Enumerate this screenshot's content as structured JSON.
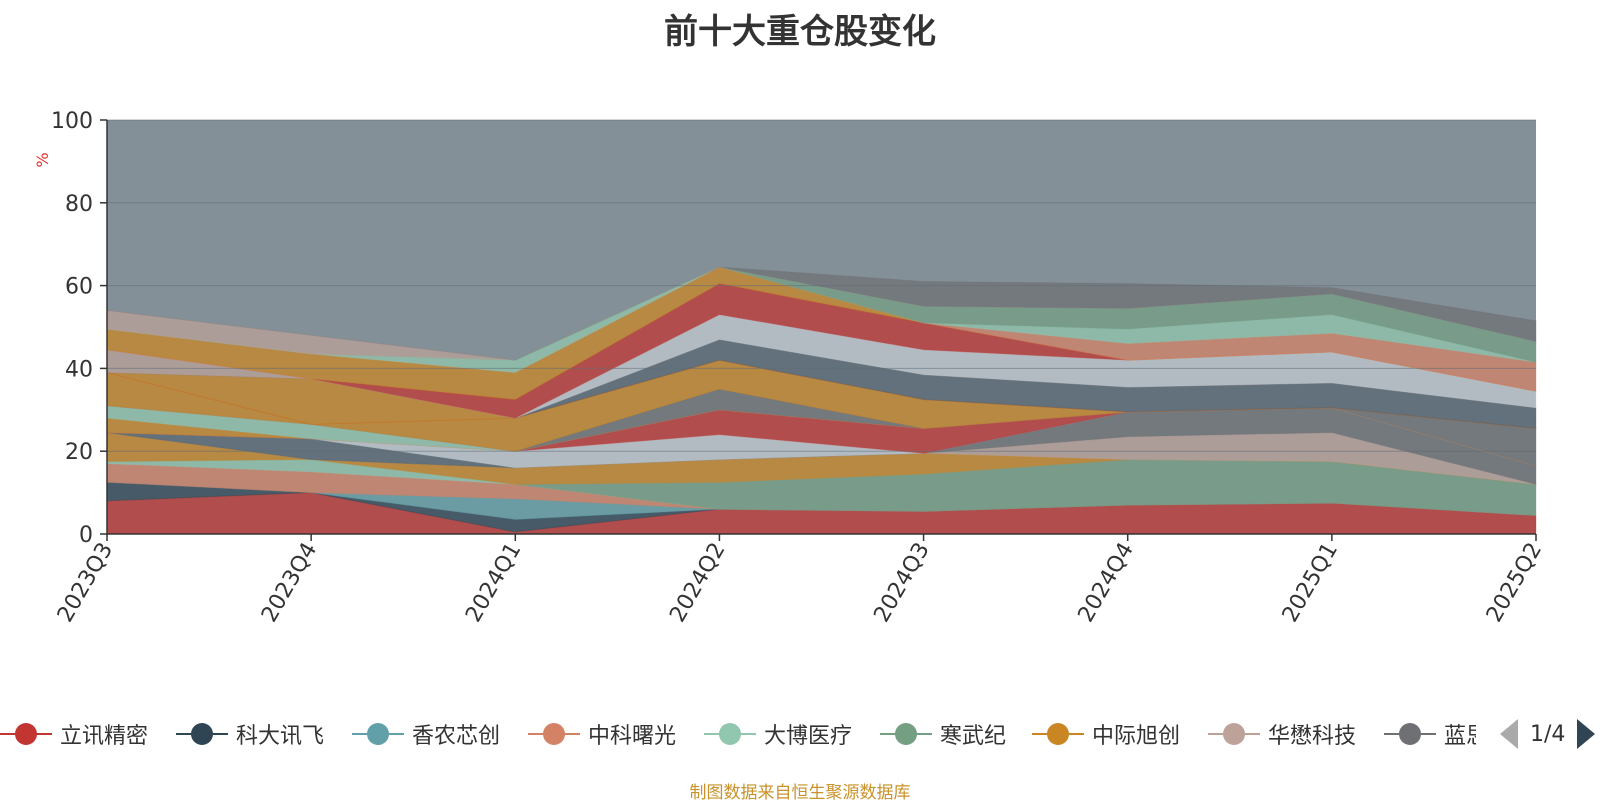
{
  "chart_data": {
    "type": "area",
    "title": "前十大重仓股变化",
    "ylabel": "%",
    "ylim": [
      0,
      100
    ],
    "yticks": [
      0,
      20,
      40,
      60,
      80,
      100
    ],
    "grid": true,
    "stacked": true,
    "legend_position": "bottom",
    "categories": [
      "2023Q3",
      "2023Q4",
      "2024Q1",
      "2024Q2",
      "2024Q3",
      "2024Q4",
      "2025Q1",
      "2025Q2"
    ],
    "series": [
      {
        "name": "立讯精密",
        "color": "#c23531",
        "values": [
          8,
          10,
          0.5,
          6,
          5.5,
          7,
          7.5,
          4.5
        ]
      },
      {
        "name": "科大讯飞",
        "color": "#2f4554",
        "values": [
          4.5,
          0,
          3,
          0,
          0,
          0,
          0,
          0
        ]
      },
      {
        "name": "香农芯创",
        "color": "#61a0a8",
        "values": [
          0,
          0,
          5,
          0,
          0,
          0,
          0,
          0
        ]
      },
      {
        "name": "中科曙光",
        "color": "#d48265",
        "values": [
          4.5,
          5,
          3.5,
          0,
          0,
          0,
          0,
          0
        ]
      },
      {
        "name": "大博医疗",
        "color": "#91c7ae",
        "values": [
          0.5,
          3,
          0,
          0,
          0,
          0,
          0,
          0
        ]
      },
      {
        "name": "寒武纪",
        "color": "#749f83",
        "values": [
          0,
          0,
          0,
          6.5,
          9,
          11,
          10,
          7.5
        ]
      },
      {
        "name": "中际旭创",
        "color": "#ca8622",
        "values": [
          7,
          0,
          4,
          5.5,
          5,
          0,
          0,
          0
        ]
      },
      {
        "name": "华懋科技",
        "color": "#bda29a",
        "values": [
          0,
          0,
          0,
          0,
          0,
          5.5,
          7,
          0
        ]
      },
      {
        "name": "蓝思科技",
        "color": "#6e7074",
        "values": [
          0,
          0,
          0,
          0,
          0,
          6,
          6,
          4.5
        ]
      },
      {
        "name": "",
        "color": "#546570",
        "values": [
          0,
          5,
          0,
          0,
          0,
          0,
          0,
          0
        ]
      },
      {
        "name": "",
        "color": "#c4ccd3",
        "values": [
          0,
          0,
          4,
          6,
          0,
          0,
          0,
          0
        ]
      },
      {
        "name": "",
        "color": "#c23531",
        "values": [
          0,
          0,
          0,
          6,
          6,
          0,
          0,
          0
        ]
      },
      {
        "name": "",
        "color": "#ca8622",
        "values": [
          3.5,
          0,
          0,
          0,
          0,
          0,
          0,
          0
        ]
      },
      {
        "name": "",
        "color": "#91c7ae",
        "values": [
          3,
          3.5,
          0,
          0,
          0,
          0,
          0,
          0
        ]
      },
      {
        "name": "",
        "color": "#d48265",
        "values": [
          0,
          0,
          0,
          0,
          0,
          0,
          0,
          0
        ]
      },
      {
        "name": "",
        "color": "#6e7074",
        "values": [
          0,
          0,
          0,
          5,
          0,
          0,
          0,
          9
        ]
      },
      {
        "name": "",
        "color": "#ca8622",
        "values": [
          8,
          0,
          8,
          7,
          7,
          0,
          0,
          0
        ]
      },
      {
        "name": "",
        "color": "#c23531",
        "values": [
          0,
          0,
          0,
          0,
          0,
          0,
          0,
          0
        ]
      },
      {
        "name": "",
        "color": "#ca8622",
        "values": [
          0,
          11,
          0,
          0,
          0,
          0,
          0,
          0
        ]
      },
      {
        "name": "",
        "color": "#546570",
        "values": [
          0,
          0,
          0,
          5,
          6,
          6,
          6,
          5
        ]
      },
      {
        "name": "",
        "color": "#bda29a",
        "values": [
          5.5,
          0,
          0,
          0,
          0,
          0,
          0,
          0
        ]
      },
      {
        "name": "",
        "color": "#c4ccd3",
        "values": [
          0,
          0,
          0,
          6,
          6,
          6.5,
          7.5,
          4
        ]
      },
      {
        "name": "",
        "color": "#c23531",
        "values": [
          0,
          0,
          4.5,
          7.5,
          6.5,
          0,
          0,
          0
        ]
      },
      {
        "name": "",
        "color": "#ca8622",
        "values": [
          5,
          6,
          6.5,
          4,
          0,
          0,
          0,
          0
        ]
      },
      {
        "name": "",
        "color": "#d48265",
        "values": [
          0,
          0,
          0,
          0,
          0,
          4,
          4.5,
          7
        ]
      },
      {
        "name": "",
        "color": "#91c7ae",
        "values": [
          0,
          0,
          3,
          0,
          0,
          3.5,
          4.5,
          0
        ]
      },
      {
        "name": "",
        "color": "#749f83",
        "values": [
          0,
          0,
          0,
          0,
          4,
          5,
          5,
          5
        ]
      },
      {
        "name": "",
        "color": "#bda29a",
        "values": [
          4.5,
          4.5,
          0,
          0,
          0,
          0,
          0,
          0
        ]
      },
      {
        "name": "",
        "color": "#6e7074",
        "values": [
          0,
          0,
          0,
          0,
          6,
          6,
          1.5,
          5
        ]
      }
    ],
    "remainder_color": "#546570"
  },
  "legend": {
    "items": [
      {
        "name": "立讯精密",
        "color": "#c23531"
      },
      {
        "name": "科大讯飞",
        "color": "#2f4554"
      },
      {
        "name": "香农芯创",
        "color": "#61a0a8"
      },
      {
        "name": "中科曙光",
        "color": "#d48265"
      },
      {
        "name": "大博医疗",
        "color": "#91c7ae"
      },
      {
        "name": "寒武纪",
        "color": "#749f83"
      },
      {
        "name": "中际旭创",
        "color": "#ca8622"
      },
      {
        "name": "华懋科技",
        "color": "#bda29a"
      },
      {
        "name": "蓝思科技",
        "color": "#6e7074"
      }
    ],
    "page_indicator": "1/4"
  },
  "footer_text": "制图数据来自恒生聚源数据库",
  "colors": {
    "title": "#333333",
    "axis": "#333333",
    "ylabel": "#e03030",
    "footer": "#c9922a",
    "grid": "#5f6b75"
  }
}
